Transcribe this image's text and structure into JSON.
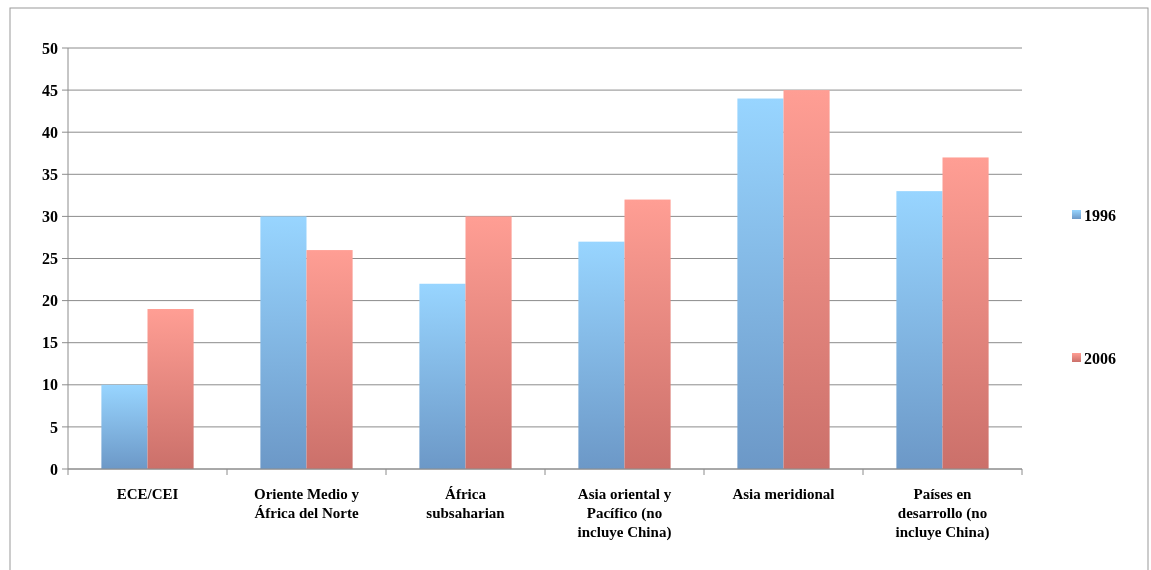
{
  "chart_data": {
    "type": "bar",
    "categories": [
      "ECE/CEI",
      "Oriente Medio y África del Norte",
      "África subsaharian",
      "Asia oriental y Pacífico (no incluye China)",
      "Asia meridional",
      "Países en desarrollo (no incluye China)"
    ],
    "series": [
      {
        "name": "1996",
        "color": "#7fb2ea",
        "values": [
          10,
          30,
          22,
          27,
          44,
          33
        ]
      },
      {
        "name": "2006",
        "color": "#ee847c",
        "values": [
          19,
          26,
          30,
          32,
          45,
          37
        ]
      }
    ],
    "ylim": [
      0,
      50
    ],
    "yticks": [
      0,
      5,
      10,
      15,
      20,
      25,
      30,
      35,
      40,
      45,
      50
    ],
    "grid": "y",
    "legend": "right"
  }
}
